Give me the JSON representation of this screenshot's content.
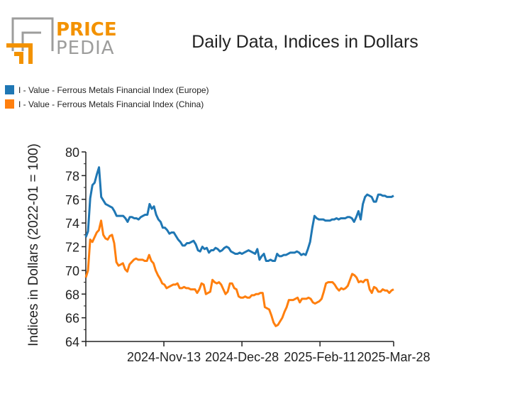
{
  "logo": {
    "line1": "PRICE",
    "line2": "PEDIA",
    "color_orange": "#f39200",
    "color_gray": "#9d9d9c"
  },
  "chart_data": {
    "type": "line",
    "title": "Daily Data, Indices in Dollars",
    "xlabel": "",
    "ylabel": "Indices in Dollars (2022-01 = 100)",
    "ylim": [
      64,
      80
    ],
    "yticks": [
      "64",
      "66",
      "68",
      "70",
      "72",
      "74",
      "76",
      "78",
      "80"
    ],
    "xlim": [
      0,
      140
    ],
    "xticks": [
      {
        "value": 0,
        "label": ""
      },
      {
        "value": 35.5,
        "label": "2024-Nov-13"
      },
      {
        "value": 71,
        "label": "2024-Dec-28"
      },
      {
        "value": 106.5,
        "label": "2025-Feb-11"
      },
      {
        "value": 140,
        "label": "2025-Mar-28"
      }
    ],
    "legend_position": "top-left",
    "series": [
      {
        "name": "I - Value - Ferrous Metals Financial Index (Europe)",
        "color": "#1f77b4",
        "values": [
          72.8,
          73.3,
          76.1,
          77.2,
          77.4,
          78.1,
          78.7,
          76.2,
          75.9,
          75.6,
          75.5,
          75.4,
          75.3,
          75.0,
          74.6,
          74.6,
          74.6,
          74.6,
          74.4,
          74.1,
          74.5,
          74.5,
          74.4,
          74.4,
          74.3,
          74.5,
          74.6,
          74.7,
          74.7,
          75.6,
          75.2,
          75.4,
          74.7,
          74.3,
          74.1,
          73.6,
          73.6,
          73.4,
          73.1,
          73.2,
          73.2,
          72.9,
          72.6,
          72.4,
          72.1,
          72.1,
          72.3,
          72.3,
          72.4,
          72.5,
          72.2,
          71.7,
          71.6,
          72.0,
          71.8,
          71.9,
          71.5,
          71.7,
          71.7,
          71.9,
          71.8,
          71.6,
          71.7,
          71.9,
          72.0,
          71.9,
          71.6,
          71.5,
          71.4,
          71.4,
          71.5,
          71.4,
          71.5,
          71.6,
          71.7,
          71.6,
          71.5,
          71.4,
          71.8,
          70.9,
          71.2,
          71.4,
          70.8,
          70.8,
          70.9,
          70.8,
          70.8,
          71.4,
          71.2,
          71.2,
          71.3,
          71.3,
          71.4,
          71.5,
          71.5,
          71.5,
          71.6,
          71.5,
          71.3,
          71.4,
          71.3,
          71.8,
          72.4,
          73.6,
          74.6,
          74.4,
          74.3,
          74.3,
          74.3,
          74.2,
          74.2,
          74.2,
          74.3,
          74.3,
          74.4,
          74.3,
          74.4,
          74.4,
          74.4,
          74.5,
          74.5,
          74.4,
          74.1,
          74.5,
          75.0,
          74.3,
          75.6,
          76.2,
          76.4,
          76.3,
          76.2,
          75.8,
          75.8,
          76.4,
          76.4,
          76.3,
          76.3,
          76.2,
          76.2,
          76.2,
          76.3
        ],
        "label_attrs": [
          "I - Value - Ferrous Metals Financial Index (Europe)"
        ]
      },
      {
        "name": "I - Value - Ferrous Metals Financial Index (China)",
        "color": "#ff7f0e",
        "values": [
          69.4,
          70.0,
          72.6,
          72.4,
          72.8,
          73.2,
          73.4,
          74.2,
          73.0,
          72.7,
          72.6,
          72.9,
          73.0,
          72.3,
          70.7,
          70.4,
          70.5,
          70.6,
          70.1,
          69.9,
          70.5,
          70.7,
          70.9,
          71.0,
          70.9,
          70.9,
          70.9,
          70.8,
          70.8,
          71.3,
          70.8,
          70.6,
          70.0,
          69.6,
          69.3,
          68.9,
          68.8,
          68.5,
          68.6,
          68.7,
          68.8,
          68.8,
          68.9,
          68.5,
          68.5,
          68.6,
          68.5,
          68.5,
          68.4,
          68.4,
          68.4,
          68.1,
          68.4,
          68.9,
          68.8,
          68.0,
          68.1,
          68.2,
          69.2,
          69.0,
          68.9,
          69.0,
          68.8,
          68.4,
          68.0,
          68.2,
          68.9,
          68.9,
          68.5,
          68.4,
          67.8,
          67.7,
          67.7,
          67.8,
          67.7,
          67.7,
          67.9,
          67.9,
          68.0,
          68.0,
          68.1,
          68.1,
          66.9,
          66.8,
          66.7,
          66.2,
          65.6,
          65.3,
          65.4,
          65.7,
          66.0,
          66.5,
          66.9,
          67.5,
          67.5,
          67.5,
          67.6,
          67.7,
          67.3,
          67.6,
          67.6,
          67.6,
          67.7,
          67.6,
          67.3,
          67.2,
          67.3,
          67.4,
          67.6,
          68.2,
          68.9,
          69.0,
          69.0,
          69.0,
          68.8,
          68.5,
          68.3,
          68.5,
          68.4,
          68.5,
          68.7,
          69.2,
          69.7,
          69.6,
          69.4,
          69.0,
          69.1,
          69.0,
          69.2,
          69.2,
          68.4,
          68.1,
          68.6,
          68.5,
          68.2,
          68.2,
          68.4,
          68.3,
          68.3,
          68.1,
          68.3,
          68.4
        ]
      }
    ]
  }
}
